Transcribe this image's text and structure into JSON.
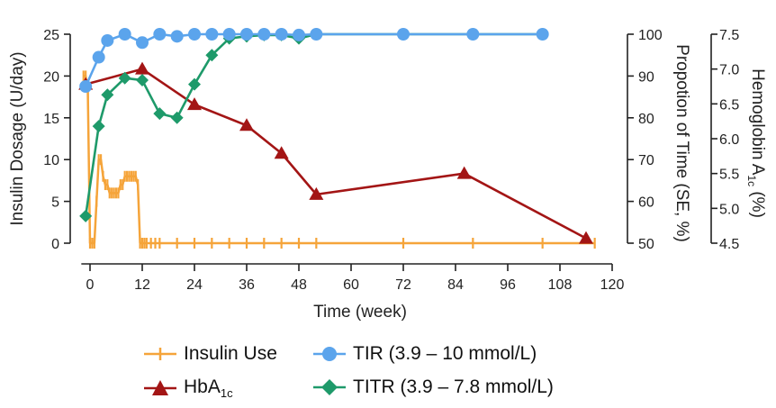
{
  "chart_data": {
    "type": "line",
    "x_axis": {
      "label": "Time (week)",
      "ticks": [
        0,
        12,
        24,
        36,
        48,
        60,
        72,
        84,
        96,
        108,
        120
      ],
      "range": [
        -2,
        120
      ]
    },
    "y_axes": {
      "insulin": {
        "label": "Insulin Dosage (U/day)",
        "ticks": [
          0,
          5,
          10,
          15,
          20,
          25
        ],
        "range": [
          0,
          25
        ]
      },
      "time_in_range": {
        "label": "Propotion of Time (SE, %)",
        "ticks": [
          50,
          60,
          70,
          80,
          90,
          100
        ],
        "range": [
          50,
          100
        ]
      },
      "hba1c": {
        "label_main": "Hemoglobin A",
        "label_sub": "1c",
        "label_suffix": " (%)",
        "ticks": [
          "4.5",
          "5.0",
          "5.5",
          "6.0",
          "6.5",
          "7.0",
          "7.5"
        ],
        "range": [
          4.5,
          7.5
        ]
      }
    },
    "series": [
      {
        "name": "Insulin Use",
        "axis": "insulin",
        "color": "#F5A43A",
        "marker": "plus",
        "x": [
          -1.5,
          -1,
          -0.5,
          0,
          0.5,
          1,
          1.5,
          2,
          2.5,
          3,
          3.5,
          4,
          4.5,
          5,
          5.5,
          6,
          6.5,
          7,
          7.5,
          8,
          8.5,
          9,
          9.5,
          10,
          10.5,
          11,
          11.5,
          12,
          12.5,
          13,
          14,
          15,
          16,
          20,
          24,
          28,
          32,
          36,
          40,
          44,
          48,
          52,
          72,
          88,
          104,
          116
        ],
        "y": [
          20,
          20,
          18,
          0,
          0,
          0,
          5,
          10,
          10,
          8,
          7,
          7,
          6,
          6,
          6,
          6,
          6,
          7,
          7,
          8,
          8,
          8,
          8,
          8,
          8,
          7,
          0,
          0,
          0,
          0,
          0,
          0,
          0,
          0,
          0,
          0,
          0,
          0,
          0,
          0,
          0,
          0,
          0,
          0,
          0,
          0
        ]
      },
      {
        "name": "TIR (3.9 – 10 mmol/L)",
        "axis": "time_in_range",
        "color": "#5BA4EC",
        "marker": "circle",
        "x": [
          -1,
          2,
          4,
          8,
          12,
          16,
          20,
          24,
          28,
          32,
          36,
          40,
          44,
          48,
          52,
          72,
          88,
          104
        ],
        "y": [
          87.5,
          94.5,
          98.5,
          100,
          98,
          100,
          99.5,
          100,
          100,
          100,
          100,
          100,
          100,
          99.8,
          100,
          100,
          100,
          100
        ]
      },
      {
        "name": "HbA1c",
        "name_main": "HbA",
        "name_sub": "1c",
        "axis": "hba1c",
        "color": "#A31515",
        "marker": "triangle",
        "x": [
          -1,
          12,
          24,
          36,
          44,
          52,
          86,
          114
        ],
        "y": [
          6.78,
          7.0,
          6.49,
          6.19,
          5.79,
          5.2,
          5.5,
          4.57
        ]
      },
      {
        "name": "TITR (3.9 – 7.8 mmol/L)",
        "axis": "time_in_range",
        "color": "#1E9A6A",
        "marker": "diamond",
        "x": [
          -1,
          2,
          4,
          8,
          12,
          16,
          20,
          24,
          28,
          32,
          36,
          40,
          44,
          48,
          52,
          72,
          104
        ],
        "y": [
          56.5,
          78,
          85.5,
          89.5,
          89,
          81,
          80,
          88,
          95,
          99,
          99.5,
          99.8,
          99.8,
          99,
          100,
          100,
          100
        ]
      }
    ],
    "legend": [
      {
        "label": "Insulin Use"
      },
      {
        "label": "TIR (3.9 – 10 mmol/L)"
      },
      {
        "label_main": "HbA",
        "label_sub": "1c"
      },
      {
        "label": "TITR (3.9 – 7.8 mmol/L)"
      }
    ]
  }
}
